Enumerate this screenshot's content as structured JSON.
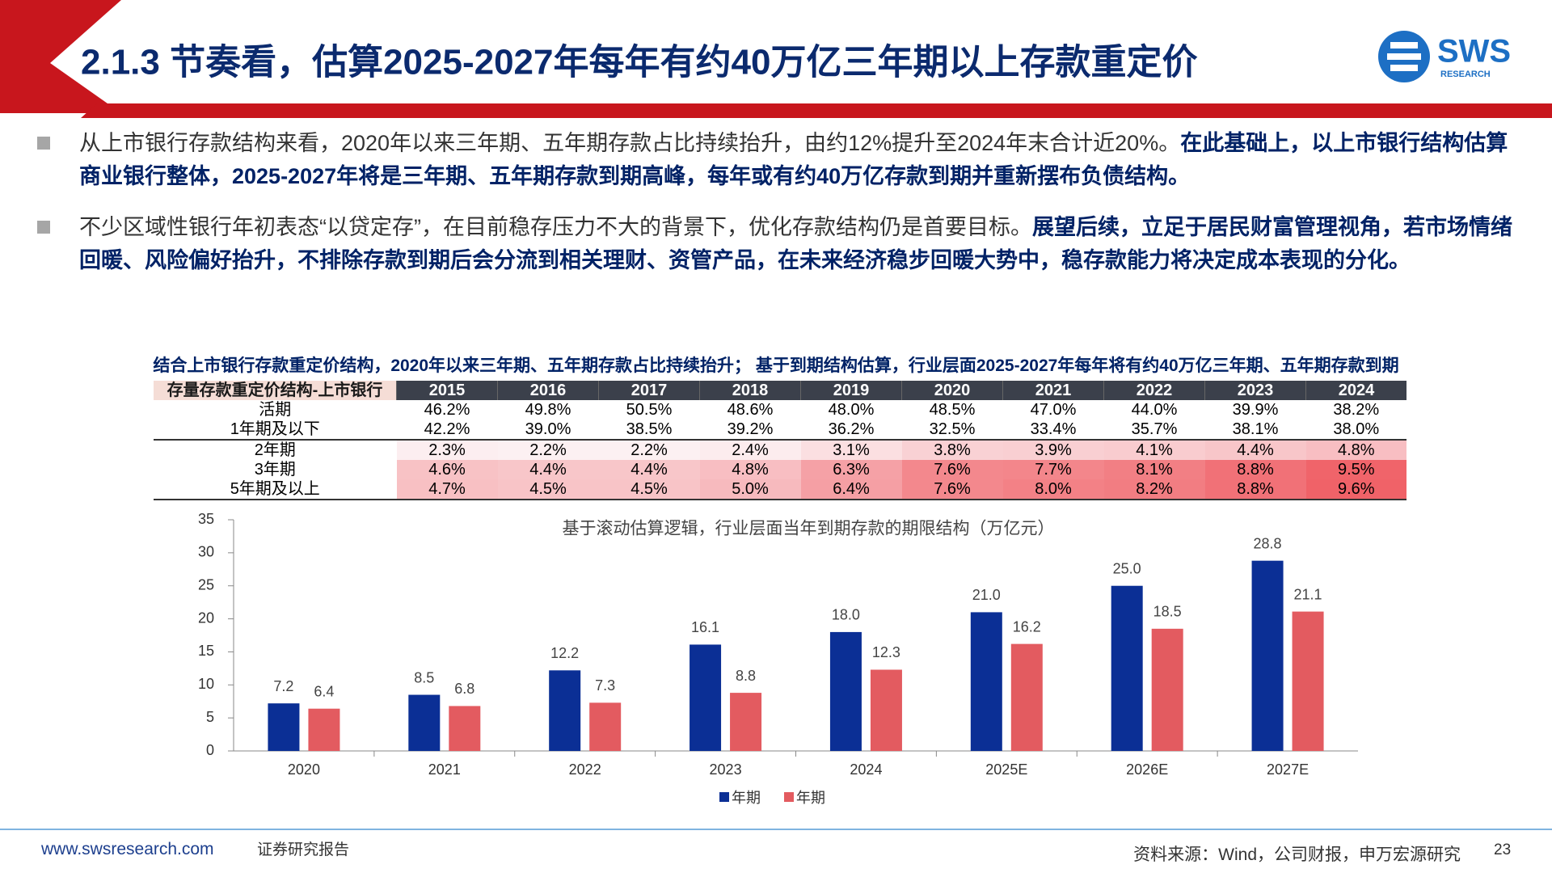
{
  "header": {
    "title": "2.1.3 节奏看，估算2025-2027年每年有约40万亿三年期以上存款重定价",
    "logo": {
      "name": "SWS",
      "sub": "RESEARCH"
    }
  },
  "bullets": [
    {
      "text": "从上市银行存款结构来看，2020年以来三年期、五年期存款占比持续抬升，由约12%提升至2024年末合计近20%。",
      "bold": "在此基础上，以上市银行结构估算商业银行整体，2025-2027年将是三年期、五年期存款到期高峰，每年或有约40万亿存款到期并重新摆布负债结构。"
    },
    {
      "text": "不少区域性银行年初表态“以贷定存”，在目前稳存压力不大的背景下，优化存款结构仍是首要目标。",
      "bold": "展望后续，立足于居民财富管理视角，若市场情绪回暖、风险偏好抬升，不排除存款到期后会分流到相关理财、资管产品，在未来经济稳步回暖大势中，稳存款能力将决定成本表现的分化。"
    }
  ],
  "table": {
    "caption": "结合上市银行存款重定价结构，2020年以来三年期、五年期存款占比持续抬升； 基于到期结构估算，行业层面2025-2027年每年将有约40万亿三年期、五年期存款到期",
    "header": [
      "存量存款重定价结构-上市银行",
      "2015",
      "2016",
      "2017",
      "2018",
      "2019",
      "2020",
      "2021",
      "2022",
      "2023",
      "2024"
    ],
    "rows": [
      [
        "活期",
        "46.2%",
        "49.8%",
        "50.5%",
        "48.6%",
        "48.0%",
        "48.5%",
        "47.0%",
        "44.0%",
        "39.9%",
        "38.2%"
      ],
      [
        "1年期及以下",
        "42.2%",
        "39.0%",
        "38.5%",
        "39.2%",
        "36.2%",
        "32.5%",
        "33.4%",
        "35.7%",
        "38.1%",
        "38.0%"
      ],
      [
        "2年期",
        "2.3%",
        "2.2%",
        "2.2%",
        "2.4%",
        "3.1%",
        "3.8%",
        "3.9%",
        "4.1%",
        "4.4%",
        "4.8%"
      ],
      [
        "3年期",
        "4.6%",
        "4.4%",
        "4.4%",
        "4.8%",
        "6.3%",
        "7.6%",
        "7.7%",
        "8.1%",
        "8.8%",
        "9.5%"
      ],
      [
        "5年期及以上",
        "4.7%",
        "4.5%",
        "4.5%",
        "5.0%",
        "6.4%",
        "7.6%",
        "8.0%",
        "8.2%",
        "8.8%",
        "9.6%"
      ]
    ]
  },
  "chart_data": {
    "type": "bar",
    "title": "基于滚动估算逻辑，行业层面当年到期存款的期限结构（万亿元）",
    "categories": [
      "2020",
      "2021",
      "2022",
      "2023",
      "2024",
      "2025E",
      "2026E",
      "2027E"
    ],
    "series": [
      {
        "name": "年期",
        "color": "#0b2f95",
        "values": [
          7.2,
          8.5,
          12.2,
          16.1,
          18.0,
          21.0,
          25.0,
          28.8
        ],
        "value_labels": [
          "7.2",
          "8.5",
          "12.2",
          "16.1",
          "18.0",
          "21.0",
          "25.0",
          "28.8"
        ]
      },
      {
        "name": "年期",
        "color": "#e35b60",
        "values": [
          6.4,
          6.8,
          7.3,
          8.8,
          12.3,
          16.2,
          18.5,
          21.1
        ],
        "value_labels": [
          "6.4",
          "6.8",
          "7.3",
          "8.8",
          "12.3",
          "16.2",
          "18.5",
          "21.1"
        ]
      }
    ],
    "ylim": [
      0,
      35
    ],
    "yticks": [
      0,
      5,
      10,
      15,
      20,
      25,
      30,
      35
    ],
    "grid": false
  },
  "footer": {
    "url": "www.swsresearch.com",
    "label": "证券研究报告",
    "source": "资料来源：Wind，公司财报，申万宏源研究",
    "page": "23"
  }
}
